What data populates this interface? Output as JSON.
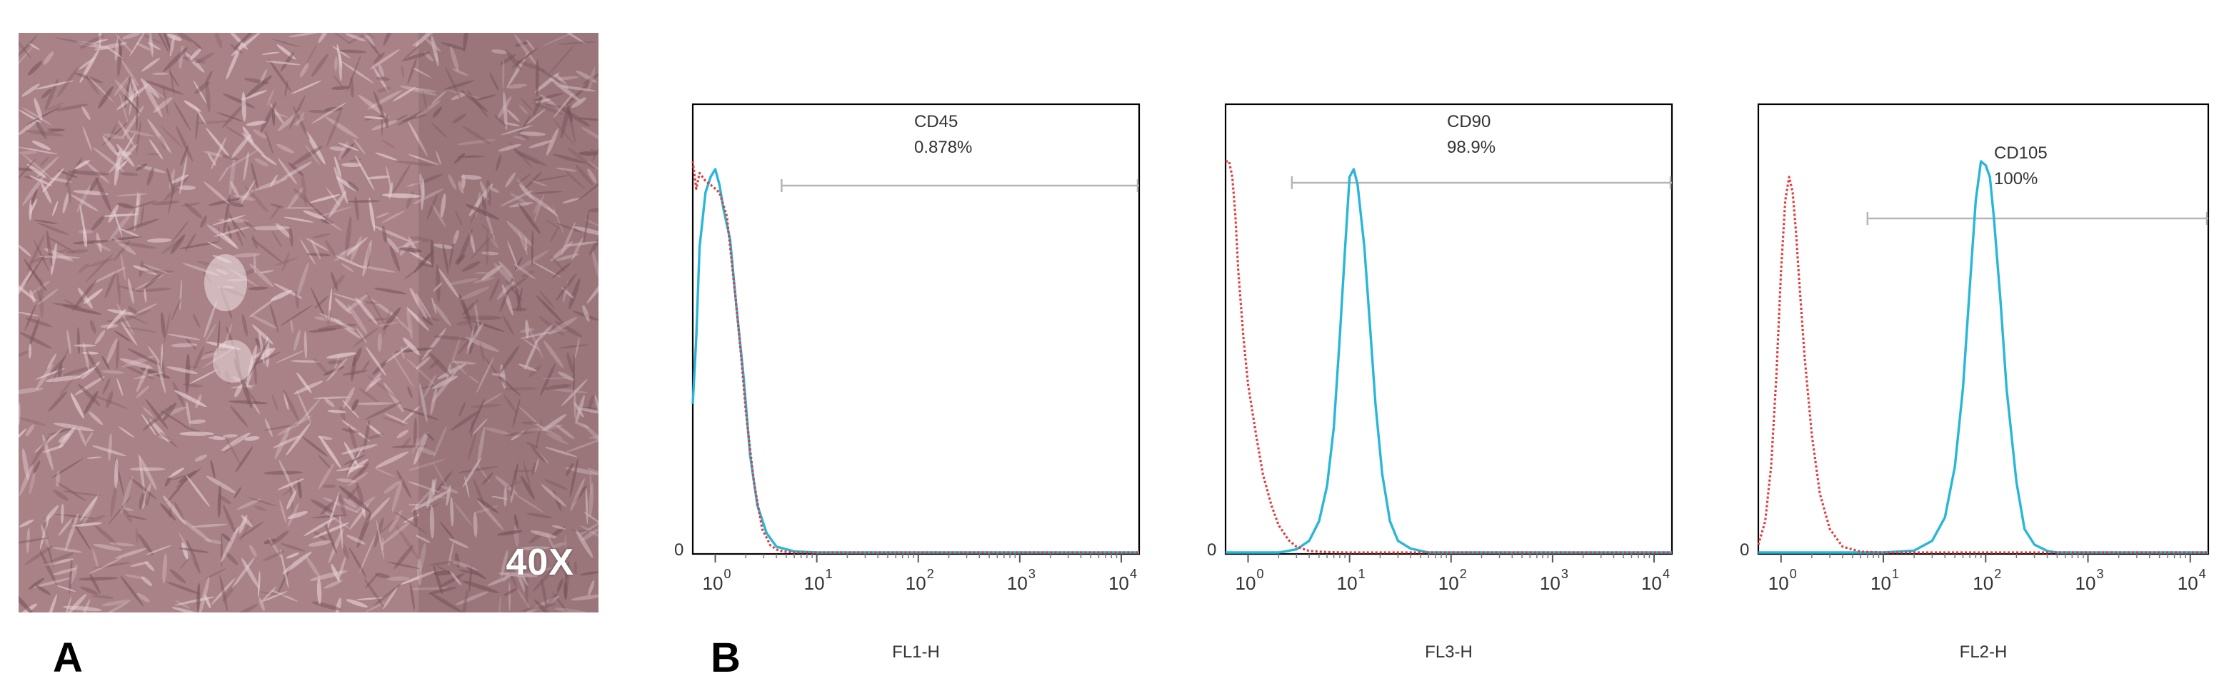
{
  "panels": {
    "a_label": "A",
    "b_label": "B"
  },
  "micrograph": {
    "magnification": "40X",
    "colors": {
      "background": "#a88287",
      "cells": "#e6d0d4"
    }
  },
  "colors": {
    "stained": "#29b6d8",
    "control": "#e23b3b",
    "gate": "#b5b5b5",
    "frame": "#000000"
  },
  "chart_data": [
    {
      "type": "line",
      "xlabel": "FL1-H",
      "x_ticks": [
        {
          "base": "10",
          "exp": "0"
        },
        {
          "base": "10",
          "exp": "1"
        },
        {
          "base": "10",
          "exp": "2"
        },
        {
          "base": "10",
          "exp": "3"
        },
        {
          "base": "10",
          "exp": "4"
        }
      ],
      "x_scale": "log",
      "xlim": [
        0.6,
        15000
      ],
      "y_tick": "0",
      "ylim": [
        0,
        100
      ],
      "marker": "CD45",
      "percentage": "0.878%",
      "gate": [
        4.5,
        15000
      ],
      "series": [
        {
          "style": "solid",
          "color": "#29b6d8",
          "x": [
            0.6,
            0.65,
            0.7,
            0.8,
            0.9,
            1.0,
            1.1,
            1.2,
            1.4,
            1.6,
            1.9,
            2.2,
            2.6,
            3.2,
            4,
            6,
            10,
            100,
            1000,
            15000
          ],
          "y": [
            38,
            55,
            78,
            92,
            96,
            98,
            94,
            88,
            80,
            64,
            45,
            25,
            12,
            5,
            1.5,
            0.3,
            0,
            0,
            0,
            0
          ]
        },
        {
          "style": "dotted",
          "color": "#e23b3b",
          "x": [
            0.6,
            0.65,
            0.7,
            0.8,
            0.9,
            1.0,
            1.1,
            1.3,
            1.6,
            1.8,
            2.0,
            2.4,
            2.9,
            3.5,
            4.2,
            5,
            6,
            10,
            100,
            15000
          ],
          "y": [
            100,
            93,
            97,
            95,
            94,
            93,
            92,
            86,
            64,
            50,
            36,
            18,
            6,
            1.8,
            0.5,
            0.2,
            0,
            0,
            0,
            0
          ]
        }
      ]
    },
    {
      "type": "line",
      "xlabel": "FL3-H",
      "x_ticks": [
        {
          "base": "10",
          "exp": "0"
        },
        {
          "base": "10",
          "exp": "1"
        },
        {
          "base": "10",
          "exp": "2"
        },
        {
          "base": "10",
          "exp": "3"
        },
        {
          "base": "10",
          "exp": "4"
        }
      ],
      "x_scale": "log",
      "xlim": [
        0.6,
        15000
      ],
      "y_tick": "0",
      "ylim": [
        0,
        100
      ],
      "marker": "CD90",
      "percentage": "98.9%",
      "gate": [
        2.7,
        15000
      ],
      "series": [
        {
          "style": "solid",
          "color": "#29b6d8",
          "x": [
            0.6,
            2,
            3,
            4,
            5,
            6,
            7,
            8,
            9,
            10,
            11,
            12,
            14,
            16,
            18,
            21,
            25,
            30,
            40,
            60,
            100,
            1000,
            15000
          ],
          "y": [
            0,
            0,
            0.8,
            3,
            8,
            17,
            32,
            55,
            77,
            96,
            98,
            94,
            78,
            57,
            38,
            20,
            8,
            3,
            1,
            0,
            0,
            0,
            0
          ]
        },
        {
          "style": "dotted",
          "color": "#e23b3b",
          "x": [
            0.6,
            0.65,
            0.7,
            0.75,
            0.8,
            0.9,
            1.0,
            1.2,
            1.4,
            1.7,
            2.0,
            2.5,
            3,
            4,
            6,
            10,
            100,
            15000
          ],
          "y": [
            100,
            100,
            96,
            86,
            72,
            55,
            43,
            30,
            20,
            12,
            7,
            3.2,
            1.5,
            0.4,
            0.1,
            0,
            0,
            0
          ]
        }
      ]
    },
    {
      "type": "line",
      "xlabel": "FL2-H",
      "x_ticks": [
        {
          "base": "10",
          "exp": "0"
        },
        {
          "base": "10",
          "exp": "1"
        },
        {
          "base": "10",
          "exp": "2"
        },
        {
          "base": "10",
          "exp": "3"
        },
        {
          "base": "10",
          "exp": "4"
        }
      ],
      "x_scale": "log",
      "xlim": [
        0.6,
        15000
      ],
      "y_tick": "0",
      "ylim": [
        0,
        100
      ],
      "marker": "CD105",
      "percentage": "100%",
      "gate": [
        7,
        15000
      ],
      "series": [
        {
          "style": "solid",
          "color": "#29b6d8",
          "x": [
            0.6,
            10,
            20,
            30,
            40,
            50,
            60,
            70,
            80,
            90,
            100,
            110,
            120,
            140,
            160,
            200,
            240,
            300,
            400,
            500,
            1000,
            15000
          ],
          "y": [
            0,
            0,
            0.5,
            3,
            9,
            22,
            42,
            68,
            90,
            100,
            99,
            96,
            86,
            64,
            42,
            18,
            6,
            2,
            0.4,
            0,
            0,
            0
          ]
        },
        {
          "style": "dotted",
          "color": "#e23b3b",
          "x": [
            0.6,
            0.7,
            0.8,
            0.9,
            1.0,
            1.1,
            1.2,
            1.3,
            1.4,
            1.5,
            1.7,
            2.0,
            2.4,
            3,
            4,
            6,
            10,
            100,
            15000
          ],
          "y": [
            2,
            8,
            22,
            45,
            72,
            90,
            96,
            92,
            82,
            70,
            50,
            30,
            15,
            6,
            1.5,
            0.2,
            0,
            0,
            0
          ]
        }
      ]
    }
  ]
}
